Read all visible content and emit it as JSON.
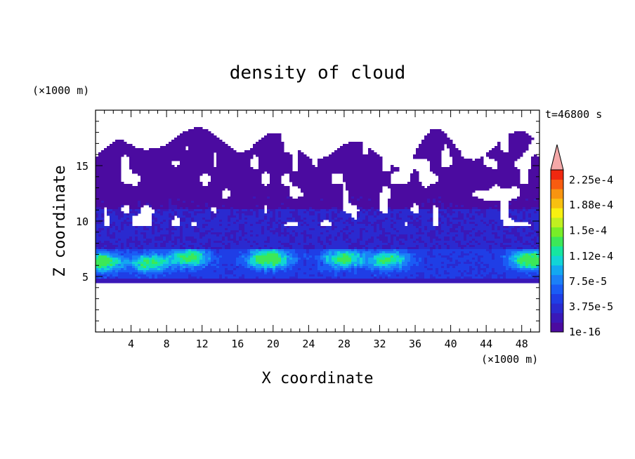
{
  "chart_data": {
    "type": "heatmap",
    "title": "density of cloud",
    "xlabel": "X coordinate",
    "ylabel": "Z coordinate",
    "x_unit": "(×1000 m)",
    "y_unit": "(×1000 m)",
    "time_label": "t=46800 s",
    "xlim": [
      0,
      50
    ],
    "ylim": [
      0,
      20
    ],
    "x_ticks": [
      4,
      8,
      12,
      16,
      20,
      24,
      28,
      32,
      36,
      40,
      44,
      48
    ],
    "y_ticks": [
      5,
      10,
      15
    ],
    "colorbar": {
      "labels": [
        "2.25e-4",
        "1.88e-4",
        "1.5e-4",
        "1.12e-4",
        "7.5e-5",
        "3.75e-5",
        "1e-16"
      ],
      "label_values": [
        0.000225,
        0.000188,
        0.00015,
        0.000112,
        7.5e-05,
        3.75e-05,
        1e-16
      ],
      "min": 1e-16,
      "max": 0.00024,
      "extend": "max",
      "colors": [
        "#4b0ba0",
        "#3a18b8",
        "#2a2ad0",
        "#1f3ee6",
        "#1a5cf5",
        "#1b80f7",
        "#13a8f0",
        "#12d4d6",
        "#16e6a0",
        "#3ce858",
        "#78ee28",
        "#c0f020",
        "#f8f010",
        "#f8c010",
        "#f89410",
        "#f85c10",
        "#f02810",
        "#f4a8a8"
      ]
    },
    "field": {
      "cloud_base": 4.5,
      "dense_layer_top": 7.5,
      "mid_layer_top": 11,
      "cloud_top_range": [
        14,
        19
      ],
      "max_observed": 0.00013,
      "dense_cores": [
        {
          "x": 0.5,
          "z": 6.3,
          "value": 0.00012
        },
        {
          "x": 6,
          "z": 6.2,
          "value": 9e-05
        },
        {
          "x": 10.5,
          "z": 6.7,
          "value": 0.0001
        },
        {
          "x": 19.5,
          "z": 6.6,
          "value": 0.00013
        },
        {
          "x": 28,
          "z": 6.6,
          "value": 0.0001
        },
        {
          "x": 33,
          "z": 6.5,
          "value": 9e-05
        },
        {
          "x": 49,
          "z": 6.5,
          "value": 0.00012
        }
      ]
    }
  }
}
